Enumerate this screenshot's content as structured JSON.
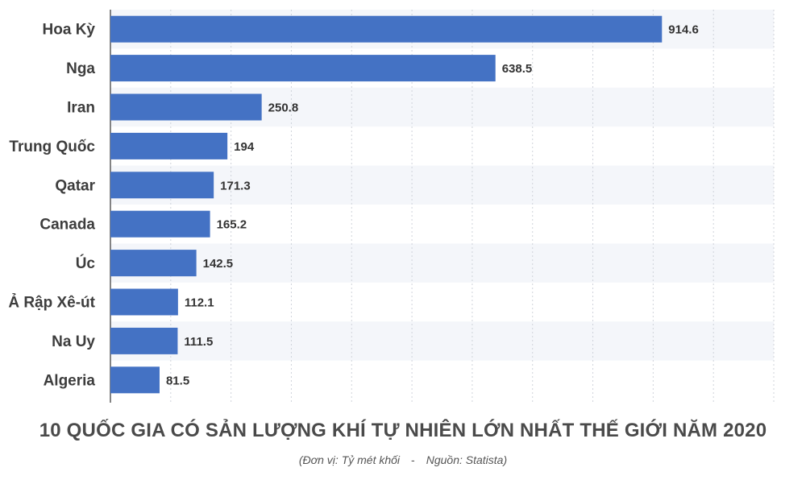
{
  "chart_data": {
    "type": "bar",
    "orientation": "horizontal",
    "categories": [
      "Hoa Kỳ",
      "Nga",
      "Iran",
      "Trung Quốc",
      "Qatar",
      "Canada",
      "Úc",
      "Ả Rập Xê-út",
      "Na Uy",
      "Algeria"
    ],
    "values": [
      914.6,
      638.5,
      250.8,
      194,
      171.3,
      165.2,
      142.5,
      112.1,
      111.5,
      81.5
    ],
    "value_labels": [
      "914.6",
      "638.5",
      "250.8",
      "194",
      "171.3",
      "165.2",
      "142.5",
      "112.1",
      "111.5",
      "81.5"
    ],
    "title": "10 QUỐC GIA CÓ SẢN LƯỢNG KHÍ TỰ NHIÊN LỚN NHẤT THẾ GIỚI NĂM 2020",
    "unit_note": "(Đơn vị: Tỷ mét khối",
    "separator": "-",
    "source_note": "Nguồn: Statista)",
    "xlim": [
      0,
      1100
    ],
    "grid": true,
    "legend": false,
    "bar_color": "#4472c4",
    "alt_row_color": "#f4f6fa"
  }
}
